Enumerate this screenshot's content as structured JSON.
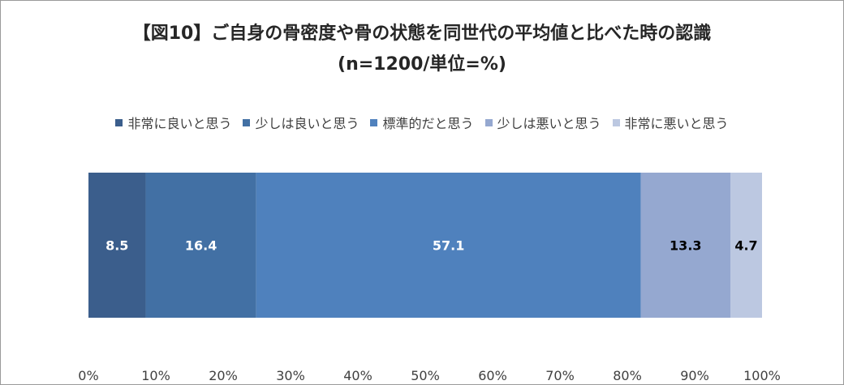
{
  "chart_data": {
    "type": "bar",
    "orientation": "horizontal",
    "stacked": true,
    "title": "【図10】ご自身の骨密度や骨の状態を同世代の平均値と比べた時の認識",
    "subtitle": "(n=1200/単位=%)",
    "categories": [
      ""
    ],
    "series": [
      {
        "name": "非常に良いと思う",
        "values": [
          8.5
        ],
        "color": "#3b5e8c"
      },
      {
        "name": "少しは良いと思う",
        "values": [
          16.4
        ],
        "color": "#4270a4"
      },
      {
        "name": "標準的だと思う",
        "values": [
          57.1
        ],
        "color": "#4f81bd"
      },
      {
        "name": "少しは悪いと思う",
        "values": [
          13.3
        ],
        "color": "#95a8d0"
      },
      {
        "name": "非常に悪いと思う",
        "values": [
          4.7
        ],
        "color": "#bcc8e1"
      }
    ],
    "label_colors": [
      "#ffffff",
      "#ffffff",
      "#ffffff",
      "#000000",
      "#000000"
    ],
    "xlim": [
      0,
      100
    ],
    "xticks": [
      "0%",
      "10%",
      "20%",
      "30%",
      "40%",
      "50%",
      "60%",
      "70%",
      "80%",
      "90%",
      "100%"
    ],
    "legend_position": "top",
    "grid": false
  }
}
